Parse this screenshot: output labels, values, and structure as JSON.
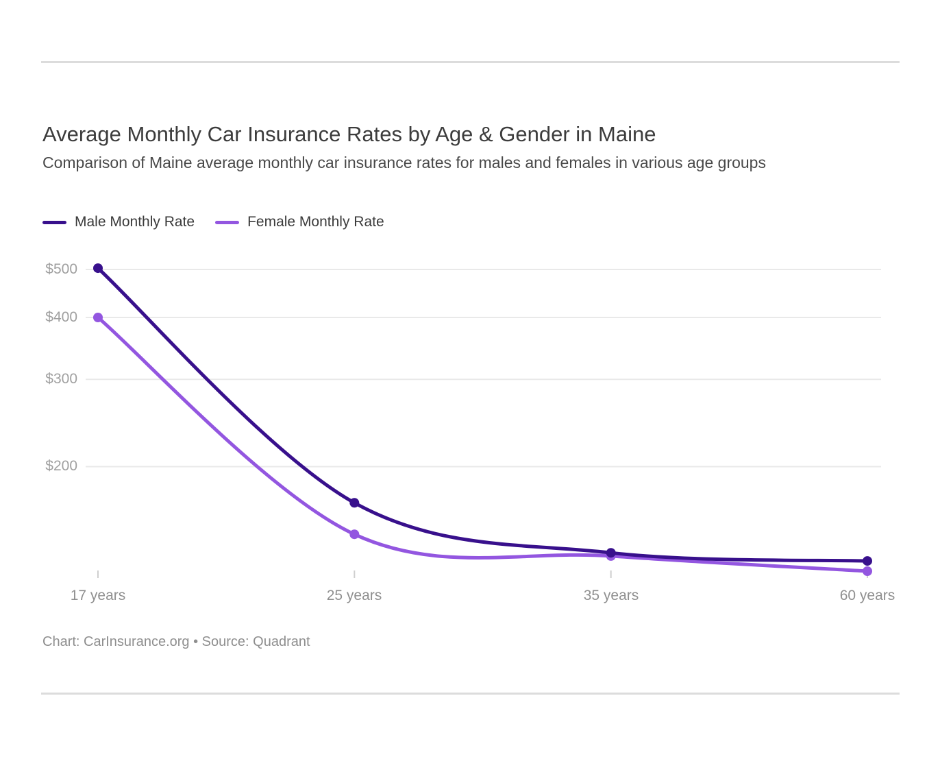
{
  "page": {
    "title": "Average Monthly Car Insurance Rates by Age & Gender in Maine",
    "subtitle": "Comparison of Maine average monthly car insurance rates for males and females in various age groups",
    "footer": "Chart: CarInsurance.org • Source: Quadrant"
  },
  "colors": {
    "male_line": "#38108C",
    "female_line": "#9356E0",
    "gridline": "#e9e9e9",
    "tick": "#cfcfcf",
    "rule": "#dcdcdc",
    "axis_text": "#a0a0a0"
  },
  "chart_data": {
    "type": "line",
    "title": "Average Monthly Car Insurance Rates by Age & Gender in Maine",
    "subtitle": "Comparison of Maine average monthly car insurance rates for males and females in various age groups",
    "categories": [
      "17 years",
      "25 years",
      "35 years",
      "60 years"
    ],
    "series": [
      {
        "name": "Male Monthly Rate",
        "color": "#38108C",
        "values": [
          503,
          169,
          134,
          129
        ]
      },
      {
        "name": "Female Monthly Rate",
        "color": "#9356E0",
        "values": [
          400,
          146,
          132,
          123
        ]
      }
    ],
    "y_axis": {
      "scale": "log",
      "tick_labels": [
        "$500",
        "$400",
        "$300",
        "$200"
      ],
      "tick_values": [
        500,
        400,
        300,
        200
      ],
      "approx_range": [
        115,
        510
      ]
    },
    "x_axis": {
      "label": "",
      "tick_labels": [
        "17 years",
        "25 years",
        "35 years",
        "60 years"
      ]
    },
    "legend_position": "top-left",
    "grid": "horizontal-only",
    "source_note": "Chart: CarInsurance.org • Source: Quadrant"
  }
}
